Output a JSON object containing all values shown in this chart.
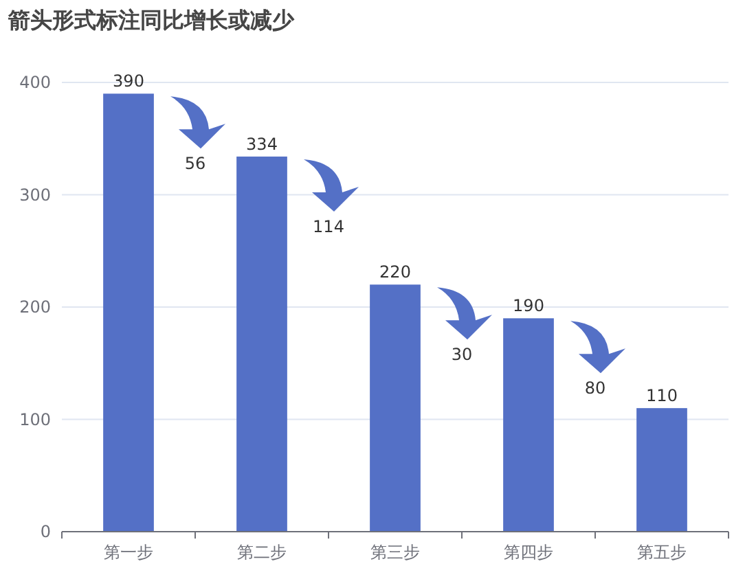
{
  "chart_data": {
    "type": "bar",
    "title": "箭头形式标注同比增长或减少",
    "categories": [
      "第一步",
      "第二步",
      "第三步",
      "第四步",
      "第五步"
    ],
    "values": [
      390,
      334,
      220,
      190,
      110
    ],
    "color": "#5470c6",
    "ylim": [
      0,
      400
    ],
    "yticks": [
      0,
      100,
      200,
      300,
      400
    ],
    "grid": "y",
    "data_labels": true,
    "annotations": [
      "56",
      "114",
      "30",
      "80"
    ]
  }
}
